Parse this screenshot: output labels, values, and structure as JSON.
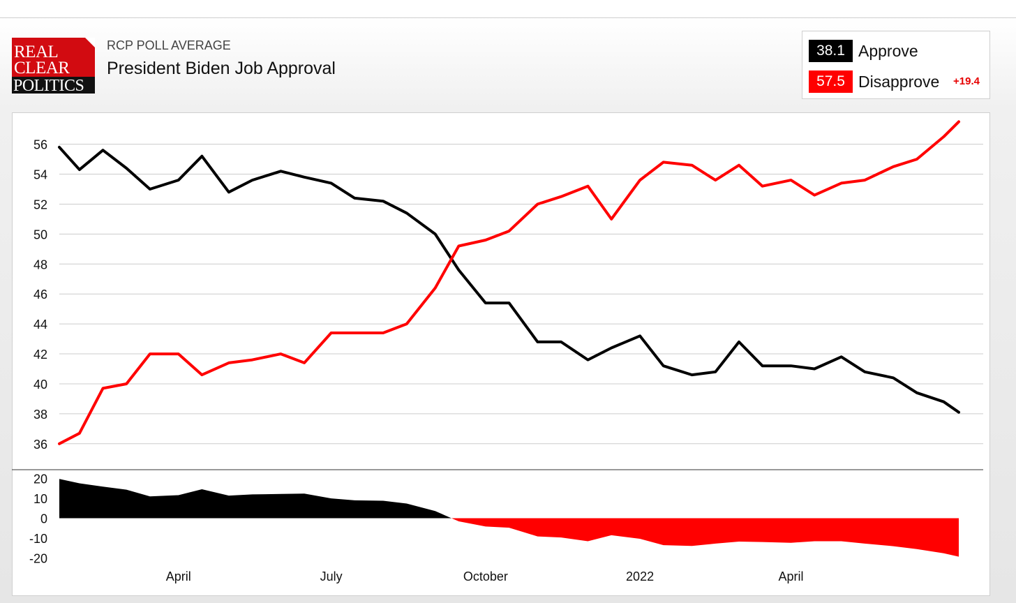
{
  "header": {
    "kicker": "RCP POLL AVERAGE",
    "title": "President Biden Job Approval",
    "logo": {
      "line1": "REAL",
      "line2": "CLEAR",
      "line3": "POLITICS"
    }
  },
  "legend": {
    "items": [
      {
        "value": "38.1",
        "label": "Approve",
        "color": "#000000"
      },
      {
        "value": "57.5",
        "label": "Disapprove",
        "color": "#ff0000"
      }
    ],
    "spread": "+19.4"
  },
  "chart_data": [
    {
      "type": "line",
      "title": "President Biden Job Approval",
      "ylim": [
        34.5,
        57.8
      ],
      "yticks": [
        36,
        38,
        40,
        42,
        44,
        46,
        48,
        50,
        52,
        54,
        56
      ],
      "grid": true,
      "legend_position": "top-right",
      "x_tick_labels": [
        {
          "label": "April",
          "x": "2021-04-01"
        },
        {
          "label": "July",
          "x": "2021-07-01"
        },
        {
          "label": "October",
          "x": "2021-10-01"
        },
        {
          "label": "2022",
          "x": "2022-01-01"
        },
        {
          "label": "April",
          "x": "2022-04-01"
        }
      ],
      "x": [
        "2021-01-20",
        "2021-02-01",
        "2021-02-15",
        "2021-03-01",
        "2021-03-15",
        "2021-04-01",
        "2021-04-15",
        "2021-05-01",
        "2021-05-15",
        "2021-06-01",
        "2021-06-15",
        "2021-07-01",
        "2021-07-15",
        "2021-08-01",
        "2021-08-15",
        "2021-09-01",
        "2021-09-15",
        "2021-10-01",
        "2021-10-15",
        "2021-11-01",
        "2021-11-15",
        "2021-12-01",
        "2021-12-15",
        "2022-01-01",
        "2022-01-15",
        "2022-02-01",
        "2022-02-15",
        "2022-03-01",
        "2022-03-15",
        "2022-04-01",
        "2022-04-15",
        "2022-05-01",
        "2022-05-15",
        "2022-06-01",
        "2022-06-15",
        "2022-07-01",
        "2022-07-10"
      ],
      "series": [
        {
          "name": "Approve",
          "color": "#000000",
          "values": [
            55.8,
            54.3,
            55.6,
            54.4,
            53.0,
            53.6,
            55.2,
            52.8,
            53.6,
            54.2,
            53.8,
            53.4,
            52.4,
            52.2,
            51.4,
            50.0,
            47.6,
            45.4,
            45.4,
            42.8,
            42.8,
            41.6,
            42.4,
            43.2,
            41.2,
            40.6,
            40.8,
            42.8,
            41.2,
            41.2,
            41.0,
            41.8,
            40.8,
            40.4,
            39.4,
            38.8,
            38.1
          ]
        },
        {
          "name": "Disapprove",
          "color": "#ff0000",
          "values": [
            36.0,
            36.7,
            39.7,
            40.0,
            42.0,
            42.0,
            40.6,
            41.4,
            41.6,
            42.0,
            41.4,
            43.4,
            43.4,
            43.4,
            44.0,
            46.4,
            49.2,
            49.6,
            50.2,
            52.0,
            52.5,
            53.2,
            51.0,
            53.6,
            54.8,
            54.6,
            53.6,
            54.6,
            53.2,
            53.6,
            52.6,
            53.4,
            53.6,
            54.5,
            55.0,
            56.5,
            57.5
          ]
        }
      ]
    },
    {
      "type": "area",
      "title": "",
      "ylim": [
        -22,
        22
      ],
      "yticks": [
        20,
        10,
        0,
        -10,
        -20
      ],
      "description_series": "Approve minus Disapprove",
      "x_ref": "same as line chart",
      "values": [
        19.8,
        17.6,
        15.9,
        14.4,
        11.0,
        11.6,
        14.6,
        11.4,
        12.0,
        12.2,
        12.4,
        10.0,
        9.0,
        8.8,
        7.4,
        3.6,
        -1.6,
        -4.2,
        -4.8,
        -9.2,
        -9.7,
        -11.6,
        -8.6,
        -10.4,
        -13.6,
        -14.0,
        -12.8,
        -11.8,
        -12.0,
        -12.4,
        -11.6,
        -11.6,
        -12.8,
        -14.1,
        -15.6,
        -17.7,
        -19.4
      ]
    }
  ]
}
